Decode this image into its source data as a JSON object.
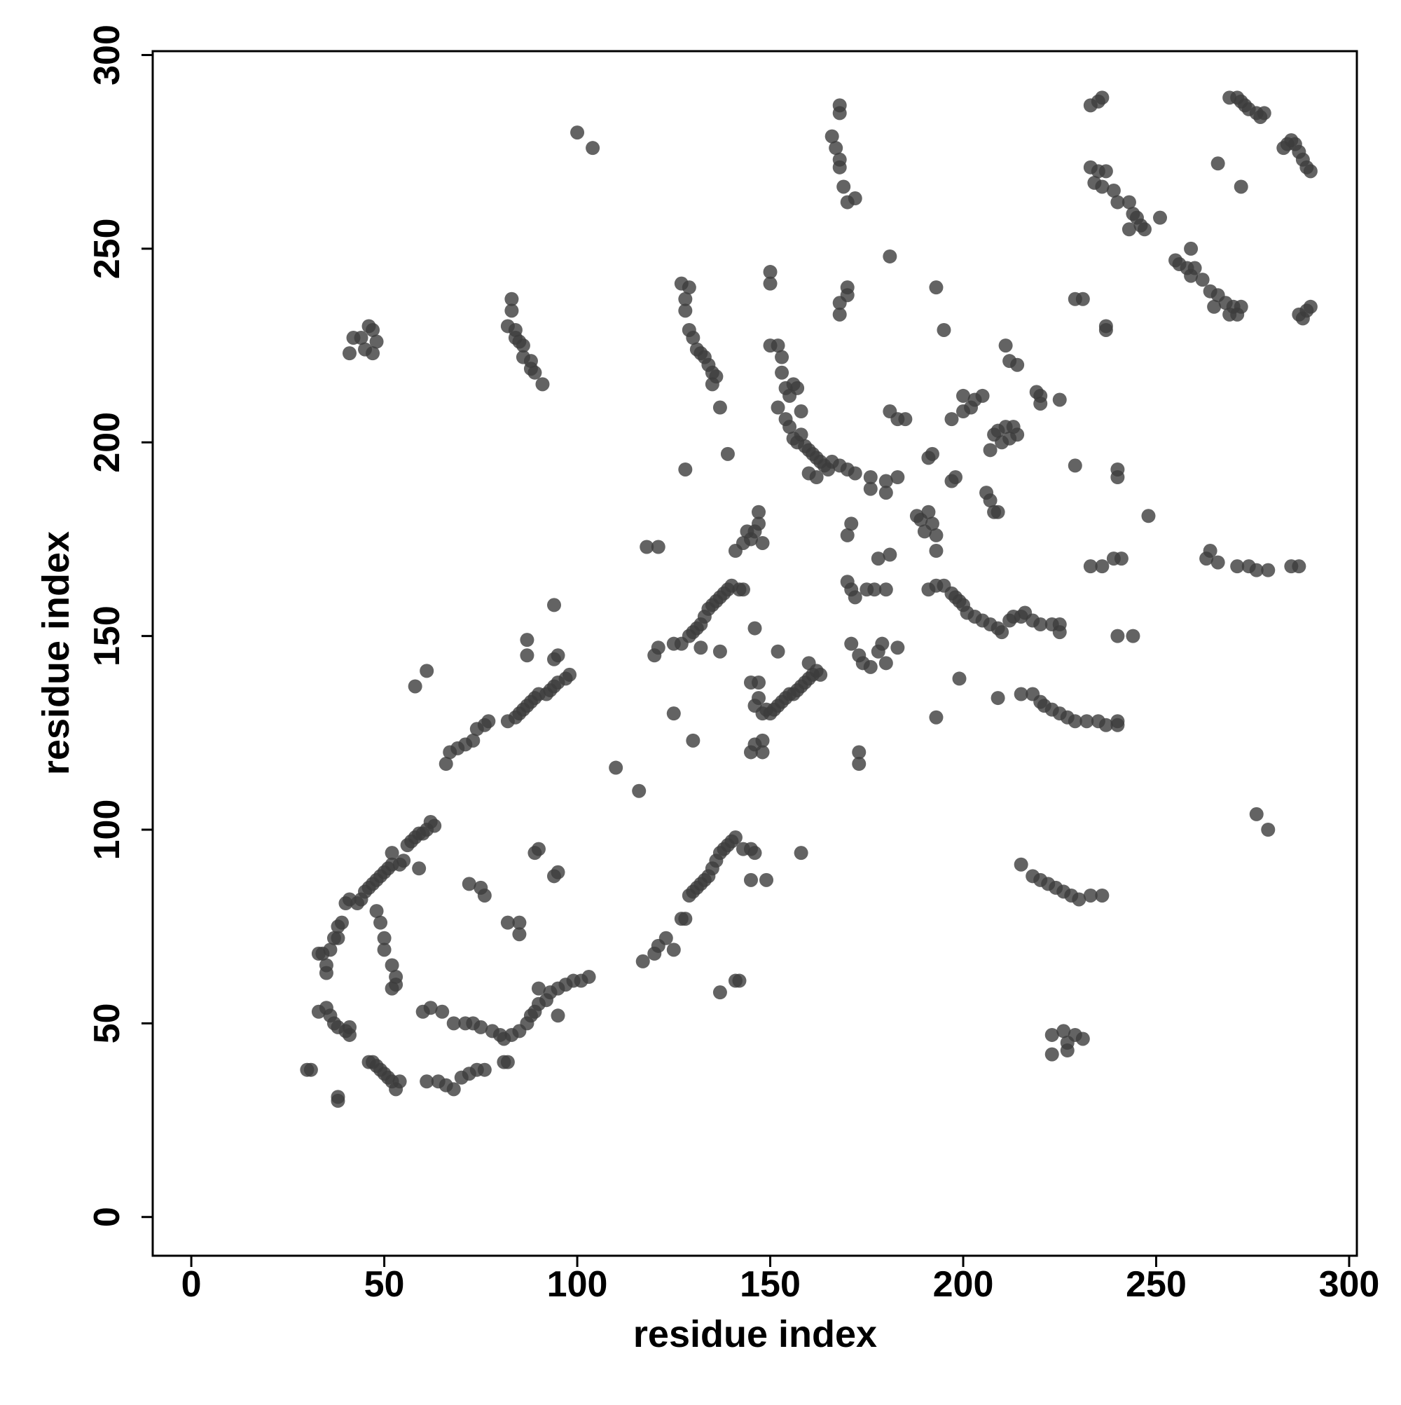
{
  "chart_data": {
    "type": "scatter",
    "xlabel": "residue index",
    "ylabel": "residue index",
    "xlim": [
      -10,
      302
    ],
    "ylim": [
      -10,
      301
    ],
    "xticks": [
      0,
      50,
      100,
      150,
      200,
      250,
      300
    ],
    "yticks": [
      0,
      50,
      100,
      150,
      200,
      250,
      300
    ],
    "grid": false,
    "color": "#3c3c3c",
    "x": [
      30,
      31,
      38,
      38,
      33,
      35,
      36,
      37,
      38,
      40,
      41,
      41,
      46,
      47,
      48,
      49,
      50,
      51,
      52,
      53,
      54,
      33,
      34,
      35,
      35,
      36,
      37,
      38,
      38,
      39,
      40,
      41,
      43,
      44,
      45,
      46,
      47,
      48,
      49,
      50,
      51,
      52,
      52,
      54,
      55,
      56,
      57,
      58,
      59,
      60,
      61,
      62,
      63,
      59,
      48,
      49,
      50,
      50,
      52,
      53,
      53,
      52,
      60,
      62,
      65,
      61,
      64,
      66,
      68,
      70,
      72,
      74,
      76,
      68,
      71,
      73,
      75,
      78,
      80,
      81,
      83,
      85,
      87,
      88,
      89,
      90,
      92,
      93,
      95,
      97,
      99,
      101,
      103,
      95,
      90,
      72,
      75,
      76,
      82,
      85,
      85,
      89,
      90,
      94,
      95,
      81,
      82,
      66,
      67,
      69,
      71,
      73,
      74,
      76,
      77,
      82,
      84,
      85,
      86,
      87,
      88,
      89,
      90,
      92,
      93,
      94,
      95,
      97,
      98,
      95,
      94,
      87,
      87,
      94,
      58,
      61,
      117,
      120,
      121,
      123,
      125,
      127,
      128,
      129,
      130,
      131,
      132,
      133,
      134,
      135,
      136,
      137,
      138,
      139,
      140,
      141,
      143,
      145,
      146,
      145,
      149,
      137,
      141,
      142,
      110,
      116,
      158,
      127,
      129,
      130,
      131,
      132,
      133,
      134,
      135,
      136,
      137,
      138,
      139,
      140,
      142,
      143,
      137,
      132,
      125,
      121,
      120,
      118,
      121,
      141,
      143,
      144,
      145,
      146,
      147,
      147,
      148,
      125,
      130,
      146,
      152,
      146,
      147,
      148,
      149,
      150,
      151,
      152,
      153,
      154,
      155,
      156,
      157,
      158,
      159,
      160,
      161,
      162,
      163,
      160,
      145,
      146,
      148,
      148,
      145,
      147,
      128,
      137,
      139,
      150,
      152,
      153,
      153,
      154,
      155,
      156,
      157,
      152,
      154,
      155,
      156,
      157,
      158,
      159,
      160,
      161,
      162,
      163,
      164,
      165,
      166,
      168,
      170,
      172,
      160,
      162,
      158,
      150,
      150,
      127,
      129,
      128,
      128,
      129,
      130,
      131,
      132,
      133,
      134,
      135,
      136,
      135,
      41,
      42,
      44,
      46,
      47,
      48,
      47,
      45,
      83,
      83,
      82,
      84,
      84,
      85,
      86,
      86,
      88,
      88,
      89,
      91,
      100,
      104,
      168,
      168,
      166,
      167,
      168,
      168,
      169,
      170,
      172,
      168,
      168,
      170,
      170,
      170,
      171,
      170,
      171,
      172,
      175,
      177,
      180,
      178,
      181,
      176,
      176,
      180,
      180,
      183,
      181,
      181,
      183,
      185,
      171,
      173,
      174,
      176,
      178,
      180,
      179,
      183,
      173,
      173,
      188,
      189,
      190,
      191,
      192,
      193,
      193,
      191,
      193,
      195,
      197,
      198,
      199,
      200,
      201,
      203,
      205,
      207,
      209,
      210,
      212,
      213,
      215,
      216,
      218,
      220,
      223,
      225,
      225,
      191,
      192,
      197,
      198,
      197,
      200,
      200,
      202,
      203,
      205,
      208,
      209,
      210,
      211,
      212,
      213,
      214,
      211,
      212,
      214,
      219,
      220,
      220,
      225,
      206,
      207,
      208,
      209,
      193,
      195,
      199,
      193,
      209,
      207,
      215,
      218,
      220,
      221,
      223,
      225,
      227,
      229,
      232,
      235,
      237,
      240,
      240,
      215,
      218,
      220,
      222,
      224,
      226,
      228,
      230,
      233,
      236,
      223,
      223,
      226,
      227,
      229,
      231,
      227,
      240,
      244,
      229,
      229,
      231,
      237,
      237,
      240,
      240,
      233,
      236,
      239,
      241,
      248,
      263,
      264,
      266,
      271,
      274,
      276,
      279,
      285,
      287,
      276,
      279,
      233,
      235,
      236,
      233,
      235,
      237,
      234,
      236,
      239,
      240,
      243,
      244,
      245,
      246,
      247,
      243,
      251,
      255,
      256,
      258,
      260,
      259,
      262,
      264,
      266,
      268,
      270,
      272,
      271,
      265,
      269,
      259,
      266,
      272,
      269,
      271,
      272,
      273,
      274,
      276,
      277,
      278,
      285,
      286,
      287,
      288,
      289,
      290,
      284,
      283,
      287,
      289,
      290,
      288
    ],
    "y": [
      38,
      38,
      31,
      30,
      53,
      54,
      52,
      50,
      49,
      48,
      47,
      49,
      40,
      40,
      39,
      38,
      37,
      36,
      35,
      33,
      35,
      68,
      68,
      65,
      63,
      69,
      72,
      72,
      75,
      76,
      81,
      82,
      81,
      82,
      84,
      85,
      86,
      87,
      88,
      89,
      90,
      91,
      94,
      91,
      92,
      96,
      97,
      98,
      99,
      99,
      100,
      102,
      101,
      90,
      79,
      76,
      72,
      69,
      65,
      62,
      60,
      59,
      53,
      54,
      53,
      35,
      35,
      34,
      33,
      36,
      37,
      38,
      38,
      50,
      50,
      50,
      49,
      48,
      47,
      46,
      47,
      48,
      50,
      52,
      53,
      55,
      56,
      58,
      59,
      60,
      61,
      61,
      62,
      52,
      59,
      86,
      85,
      83,
      76,
      76,
      73,
      94,
      95,
      88,
      89,
      40,
      40,
      117,
      120,
      121,
      122,
      123,
      126,
      127,
      128,
      128,
      129,
      130,
      131,
      132,
      133,
      134,
      135,
      135,
      136,
      137,
      138,
      139,
      140,
      145,
      144,
      149,
      145,
      158,
      137,
      141,
      66,
      68,
      70,
      72,
      69,
      77,
      77,
      83,
      84,
      85,
      86,
      87,
      88,
      90,
      92,
      94,
      95,
      96,
      97,
      98,
      95,
      95,
      94,
      87,
      87,
      58,
      61,
      61,
      116,
      110,
      94,
      148,
      150,
      151,
      152,
      153,
      155,
      157,
      158,
      159,
      160,
      161,
      162,
      163,
      162,
      162,
      146,
      147,
      148,
      147,
      145,
      173,
      173,
      172,
      174,
      177,
      175,
      177,
      179,
      182,
      174,
      130,
      123,
      152,
      146,
      132,
      134,
      130,
      131,
      130,
      131,
      132,
      133,
      134,
      135,
      135,
      136,
      137,
      138,
      139,
      140,
      141,
      140,
      143,
      120,
      122,
      120,
      123,
      138,
      138,
      193,
      209,
      197,
      225,
      225,
      222,
      218,
      214,
      212,
      215,
      214,
      209,
      206,
      204,
      201,
      200,
      202,
      199,
      198,
      197,
      196,
      195,
      194,
      193,
      195,
      194,
      193,
      192,
      192,
      191,
      208,
      241,
      244,
      241,
      240,
      237,
      234,
      229,
      227,
      224,
      223,
      222,
      220,
      218,
      217,
      215,
      223,
      227,
      227,
      230,
      229,
      226,
      223,
      224,
      237,
      234,
      230,
      229,
      227,
      226,
      225,
      222,
      221,
      219,
      218,
      215,
      280,
      276,
      287,
      285,
      279,
      276,
      273,
      271,
      266,
      262,
      263,
      236,
      233,
      240,
      238,
      176,
      179,
      164,
      162,
      160,
      162,
      162,
      162,
      170,
      171,
      191,
      188,
      190,
      187,
      191,
      248,
      208,
      206,
      206,
      148,
      145,
      143,
      142,
      146,
      143,
      148,
      147,
      120,
      117,
      181,
      180,
      177,
      182,
      179,
      176,
      172,
      162,
      163,
      163,
      161,
      160,
      159,
      158,
      156,
      155,
      154,
      153,
      152,
      151,
      154,
      155,
      155,
      156,
      154,
      153,
      153,
      153,
      151,
      196,
      197,
      190,
      191,
      206,
      208,
      212,
      209,
      211,
      212,
      202,
      203,
      200,
      204,
      201,
      204,
      202,
      225,
      221,
      220,
      213,
      212,
      210,
      211,
      187,
      185,
      182,
      182,
      240,
      229,
      139,
      129,
      134,
      198,
      135,
      135,
      133,
      132,
      131,
      130,
      129,
      128,
      128,
      128,
      127,
      128,
      127,
      91,
      88,
      87,
      86,
      85,
      84,
      83,
      82,
      83,
      83,
      47,
      42,
      48,
      45,
      47,
      46,
      43,
      150,
      150,
      194,
      237,
      237,
      230,
      229,
      193,
      191,
      168,
      168,
      170,
      170,
      181,
      170,
      172,
      169,
      168,
      168,
      167,
      167,
      168,
      168,
      104,
      100,
      287,
      288,
      289,
      271,
      270,
      270,
      267,
      266,
      265,
      262,
      262,
      259,
      258,
      256,
      255,
      255,
      258,
      247,
      246,
      245,
      245,
      243,
      242,
      239,
      238,
      236,
      235,
      235,
      233,
      235,
      233,
      250,
      272,
      266,
      289,
      289,
      288,
      287,
      286,
      285,
      284,
      285,
      278,
      277,
      275,
      273,
      271,
      270,
      277,
      276,
      233,
      234,
      235,
      232
    ]
  }
}
